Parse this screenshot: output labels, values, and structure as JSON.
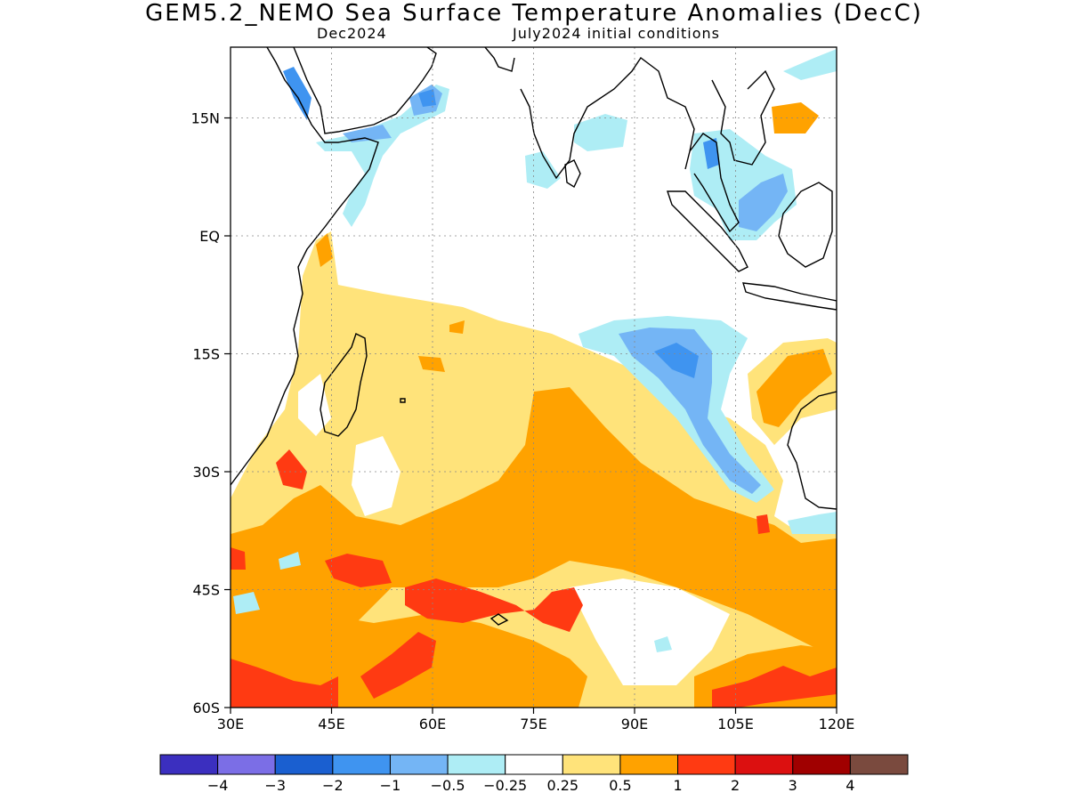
{
  "title": "GEM5.2_NEMO Sea Surface Temperature Anomalies (DecC)",
  "subtitle_left": "Dec2024",
  "subtitle_right": "July2024 initial conditions",
  "lat_labels": [
    {
      "label": "15N",
      "value": 15
    },
    {
      "label": "EQ",
      "value": 0
    },
    {
      "label": "15S",
      "value": -15
    },
    {
      "label": "30S",
      "value": -30
    },
    {
      "label": "45S",
      "value": -45
    },
    {
      "label": "60S",
      "value": -60
    }
  ],
  "lon_labels": [
    {
      "label": "30E",
      "value": 30
    },
    {
      "label": "45E",
      "value": 45
    },
    {
      "label": "60E",
      "value": 60
    },
    {
      "label": "75E",
      "value": 75
    },
    {
      "label": "90E",
      "value": 90
    },
    {
      "label": "105E",
      "value": 105
    },
    {
      "label": "120E",
      "value": 120
    }
  ],
  "extent": {
    "lon": [
      30,
      120
    ],
    "lat": [
      -60,
      24
    ]
  },
  "colorbar": {
    "colors": [
      "#3b2fbf",
      "#7b6ee6",
      "#1a5fd0",
      "#3f94f0",
      "#74b5f5",
      "#aeedf5",
      "#ffffff",
      "#ffe37a",
      "#ffa200",
      "#ff3a12",
      "#dc1010",
      "#a00000",
      "#7a4a3e"
    ],
    "labels": [
      "−4",
      "−3",
      "−2",
      "−1",
      "−0.5",
      "−0.25",
      "0.25",
      "0.5",
      "1",
      "2",
      "3",
      "4"
    ]
  },
  "legend_colors": {
    "c_yellow": "#ffe37a",
    "c_orange": "#ffa200",
    "c_red": "#ff3a12",
    "c_lightcyan": "#aeedf5",
    "c_lightblue": "#74b5f5",
    "c_blue": "#3f94f0"
  }
}
